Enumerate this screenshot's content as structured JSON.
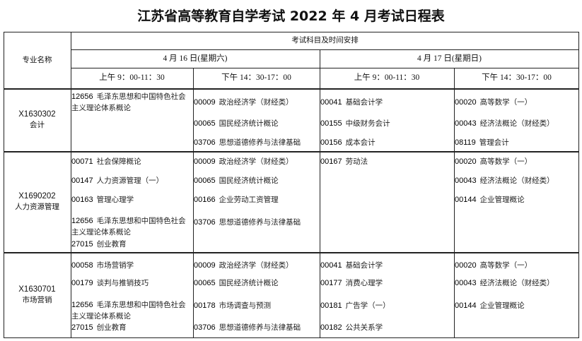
{
  "title": "江苏省高等教育自学考试 2022 年 4 月考试日程表",
  "header": {
    "major": "专业名称",
    "schedule": "考试科目及时间安排",
    "day1": "4 月 16 日(星期六)",
    "day2": "4 月 17 日(星期日)",
    "am": "上午 9：00-11：30",
    "pm": "下午 14：30-17：00"
  },
  "rows": [
    {
      "code": "X1630302",
      "name": "会计",
      "cols": [
        [
          {
            "code": "12656",
            "name": "毛泽东思想和中国特色社会主义理论体系概论"
          }
        ],
        [
          {
            "code": "00009",
            "name": "政治经济学（财经类）"
          },
          {
            "code": "00065",
            "name": "国民经济统计概论"
          },
          {
            "code": "03706",
            "name": "思想道德修养与法律基础"
          }
        ],
        [
          {
            "code": "00041",
            "name": "基础会计学"
          },
          {
            "code": "00155",
            "name": "中级财务会计"
          },
          {
            "code": "00156",
            "name": "成本会计"
          }
        ],
        [
          {
            "code": "00020",
            "name": "高等数学（一）"
          },
          {
            "code": "00043",
            "name": "经济法概论（财经类）"
          },
          {
            "code": "08119",
            "name": "管理会计"
          }
        ]
      ]
    },
    {
      "code": "X1690202",
      "name": "人力资源管理",
      "cols": [
        [
          {
            "code": "00071",
            "name": "社会保障概论"
          },
          {
            "code": "00147",
            "name": "人力资源管理（一）"
          },
          {
            "code": "00163",
            "name": "管理心理学"
          },
          {
            "code": "12656",
            "name": "毛泽东思想和中国特色社会主义理论体系概论"
          },
          {
            "code": "27015",
            "name": "创业教育"
          }
        ],
        [
          {
            "code": "00009",
            "name": "政治经济学（财经类）"
          },
          {
            "code": "00065",
            "name": "国民经济统计概论"
          },
          {
            "code": "00166",
            "name": "企业劳动工资管理"
          },
          {
            "code": "03706",
            "name": "思想道德修养与法律基础"
          }
        ],
        [
          {
            "code": "00167",
            "name": "劳动法"
          }
        ],
        [
          {
            "code": "00020",
            "name": "高等数学（一）"
          },
          {
            "code": "00043",
            "name": "经济法概论（财经类）"
          },
          {
            "code": "00144",
            "name": "企业管理概论"
          }
        ]
      ]
    },
    {
      "code": "X1630701",
      "name": "市场营销",
      "cols": [
        [
          {
            "code": "00058",
            "name": "市场营销学"
          },
          {
            "code": "00179",
            "name": "谈判与推销技巧"
          },
          {
            "code": "12656",
            "name": "毛泽东思想和中国特色社会主义理论体系概论"
          },
          {
            "code": "27015",
            "name": "创业教育"
          }
        ],
        [
          {
            "code": "00009",
            "name": "政治经济学（财经类）"
          },
          {
            "code": "00065",
            "name": "国民经济统计概论"
          },
          {
            "code": "00178",
            "name": "市场调查与预测"
          },
          {
            "code": "03706",
            "name": "思想道德修养与法律基础"
          }
        ],
        [
          {
            "code": "00041",
            "name": "基础会计学"
          },
          {
            "code": "00177",
            "name": "消费心理学"
          },
          {
            "code": "00181",
            "name": "广告学（一）"
          },
          {
            "code": "00182",
            "name": "公共关系学"
          }
        ],
        [
          {
            "code": "00020",
            "name": "高等数学（一）"
          },
          {
            "code": "00043",
            "name": "经济法概论（财经类）"
          },
          {
            "code": "00144",
            "name": "企业管理概论"
          }
        ]
      ]
    }
  ]
}
